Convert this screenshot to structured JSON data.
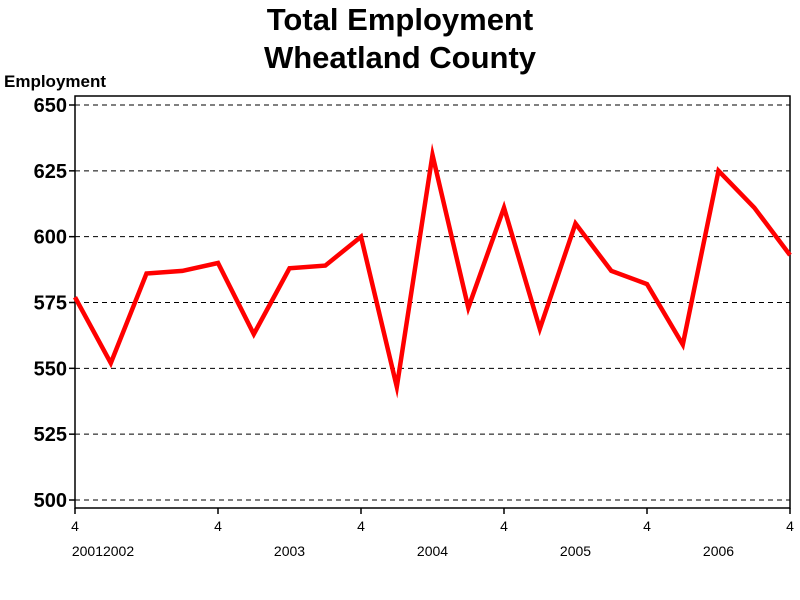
{
  "chart_data": {
    "type": "line",
    "title": "Total Employment",
    "subtitle": "Wheatland County",
    "ylabel": "Employment",
    "ylim": [
      500,
      650
    ],
    "yticks": [
      500,
      525,
      550,
      575,
      600,
      625,
      650
    ],
    "grid": "horizontal dashed",
    "line_color": "#ff0000",
    "x_quarter_labels": [
      "4",
      "4",
      "4",
      "4",
      "4",
      "4"
    ],
    "x_year_labels": [
      "20012002",
      "2003",
      "2004",
      "2005",
      "2006"
    ],
    "x": [
      "2001 Q4",
      "2002 Q1",
      "2002 Q2",
      "2002 Q3",
      "2002 Q4",
      "2003 Q1",
      "2003 Q2",
      "2003 Q3",
      "2003 Q4",
      "2004 Q1",
      "2004 Q2",
      "2004 Q3",
      "2004 Q4",
      "2005 Q1",
      "2005 Q2",
      "2005 Q3",
      "2005 Q4",
      "2006 Q1",
      "2006 Q2",
      "2006 Q3",
      "2006 Q4"
    ],
    "series": [
      {
        "values": [
          577,
          552,
          586,
          587,
          590,
          563,
          588,
          589,
          600,
          543,
          631,
          573,
          611,
          565,
          605,
          587,
          582,
          559,
          625,
          611,
          593
        ]
      }
    ]
  }
}
